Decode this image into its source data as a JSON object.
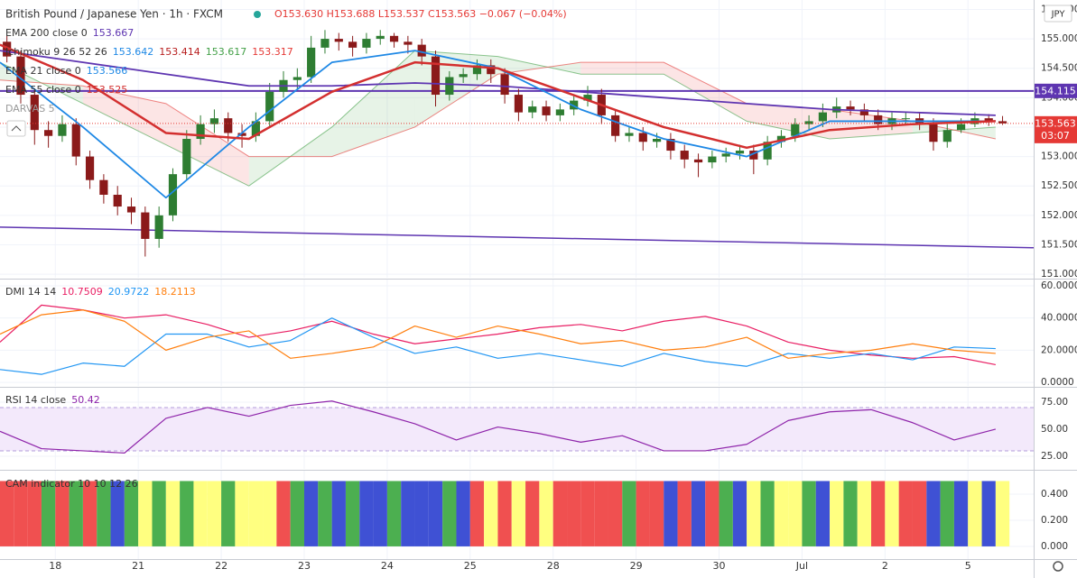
{
  "chart_data": [
    {
      "type": "candlestick",
      "title": "British Pound / Japanese Yen · 1h · FXCM",
      "quote": [
        "O153.630",
        "H153.688",
        "L153.537",
        "C153.563",
        "−0.067 (−0.04%)"
      ],
      "currency": "JPY",
      "x": [
        -14,
        -10,
        -6,
        -2,
        2,
        6,
        10,
        14,
        18,
        22,
        26,
        30,
        34,
        38,
        42,
        46,
        50,
        54,
        58,
        62,
        66,
        70,
        74,
        78,
        82,
        86,
        90,
        94,
        98,
        102,
        106,
        110,
        114,
        118,
        122,
        126,
        130,
        134,
        138,
        142,
        146,
        150,
        154,
        158,
        162,
        166,
        170,
        174,
        178,
        182,
        186,
        190,
        194,
        198,
        202,
        206,
        210,
        214,
        218,
        222,
        226,
        230,
        234,
        238,
        242,
        246,
        250,
        254,
        258,
        262,
        266,
        270,
        274
      ],
      "open": [
        154.95,
        154.7,
        154.05,
        153.45,
        153.35,
        153.55,
        153.0,
        152.6,
        152.35,
        152.15,
        152.05,
        151.6,
        152.0,
        152.7,
        153.3,
        153.55,
        153.65,
        153.4,
        153.35,
        153.6,
        154.1,
        154.3,
        154.35,
        154.85,
        155.0,
        154.95,
        154.85,
        155.0,
        155.05,
        154.95,
        154.9,
        154.7,
        154.05,
        154.35,
        154.4,
        154.55,
        154.4,
        154.05,
        153.75,
        153.85,
        153.7,
        153.8,
        153.95,
        154.05,
        153.7,
        153.35,
        153.4,
        153.25,
        153.3,
        153.1,
        152.95,
        152.9,
        153.0,
        153.05,
        153.1,
        152.95,
        153.25,
        153.35,
        153.55,
        153.6,
        153.75,
        153.85,
        153.8,
        153.7,
        153.55,
        153.65,
        153.65,
        153.55,
        153.25,
        153.45,
        153.55,
        153.65,
        153.6
      ],
      "high": [
        155.05,
        154.8,
        154.15,
        153.6,
        153.7,
        153.65,
        153.1,
        152.7,
        152.5,
        152.3,
        152.15,
        152.15,
        152.8,
        153.45,
        153.7,
        153.8,
        153.75,
        153.55,
        153.75,
        154.25,
        154.45,
        154.5,
        155.05,
        155.15,
        155.1,
        155.05,
        155.1,
        155.15,
        155.1,
        155.05,
        155.0,
        154.8,
        154.45,
        154.5,
        154.65,
        154.65,
        154.5,
        154.15,
        153.95,
        153.95,
        153.9,
        154.05,
        154.2,
        154.15,
        153.8,
        153.5,
        153.5,
        153.4,
        153.4,
        153.2,
        153.05,
        153.1,
        153.15,
        153.2,
        153.2,
        153.35,
        153.45,
        153.65,
        153.7,
        153.9,
        154.0,
        153.95,
        153.9,
        153.8,
        153.75,
        153.75,
        153.75,
        153.65,
        153.55,
        153.65,
        153.75,
        153.72,
        153.688
      ],
      "low": [
        154.6,
        153.9,
        153.2,
        153.15,
        153.25,
        152.85,
        152.45,
        152.2,
        152.0,
        151.85,
        151.3,
        151.45,
        151.9,
        152.6,
        153.2,
        153.4,
        153.25,
        153.15,
        153.25,
        153.5,
        154.0,
        154.15,
        154.25,
        154.75,
        154.8,
        154.7,
        154.75,
        154.9,
        154.85,
        154.75,
        154.55,
        153.85,
        153.95,
        154.25,
        154.3,
        154.25,
        153.9,
        153.6,
        153.65,
        153.6,
        153.6,
        153.7,
        153.85,
        153.55,
        153.25,
        153.25,
        153.1,
        153.15,
        152.95,
        152.8,
        152.65,
        152.8,
        152.9,
        152.95,
        152.7,
        152.85,
        153.15,
        153.25,
        153.45,
        153.5,
        153.65,
        153.7,
        153.6,
        153.45,
        153.45,
        153.55,
        153.45,
        153.1,
        153.15,
        153.4,
        153.5,
        153.52,
        153.537
      ],
      "close": [
        154.7,
        154.05,
        153.45,
        153.35,
        153.55,
        153.0,
        152.6,
        152.35,
        152.15,
        152.05,
        151.6,
        152.0,
        152.7,
        153.3,
        153.55,
        153.65,
        153.4,
        153.35,
        153.6,
        154.1,
        154.3,
        154.35,
        154.85,
        155.0,
        154.95,
        154.85,
        155.0,
        155.05,
        154.95,
        154.9,
        154.7,
        154.05,
        154.35,
        154.4,
        154.55,
        154.4,
        154.05,
        153.75,
        153.85,
        153.7,
        153.8,
        153.95,
        154.05,
        153.7,
        153.35,
        153.4,
        153.25,
        153.3,
        153.1,
        152.95,
        152.9,
        153.0,
        153.05,
        153.1,
        152.95,
        153.25,
        153.35,
        153.55,
        153.6,
        153.75,
        153.85,
        153.8,
        153.7,
        153.55,
        153.65,
        153.65,
        153.55,
        153.25,
        153.45,
        153.55,
        153.65,
        153.6,
        153.563
      ],
      "up_color": "#2e7d32",
      "down_color": "#8b1a1a",
      "overlays": [
        {
          "name": "EMA 200 close 0",
          "last": "153.667",
          "color": "#5e35b1",
          "x": [
            -16,
            8,
            32,
            56,
            80,
            104,
            128,
            152,
            176,
            200,
            224,
            248,
            272
          ],
          "values": [
            154.8,
            154.6,
            154.4,
            154.2,
            154.2,
            154.25,
            154.2,
            154.1,
            154.0,
            153.9,
            153.8,
            153.75,
            153.7
          ]
        },
        {
          "name": "Ichimoku 9 26 52 26",
          "last": [
            "153.642",
            "153.414",
            "153.617",
            "153.317"
          ],
          "colors": [
            "#1e88e5",
            "#b71c1c",
            "#43a047",
            "#e53935"
          ],
          "x": [
            -16,
            8,
            32,
            56,
            80,
            104,
            128,
            152,
            176,
            200,
            224,
            248,
            272
          ],
          "span_a": [
            154.6,
            153.9,
            153.2,
            152.5,
            153.5,
            154.8,
            154.7,
            154.4,
            154.4,
            153.6,
            153.3,
            153.4,
            153.5
          ],
          "span_b": [
            154.3,
            154.2,
            153.9,
            153.0,
            153.0,
            153.5,
            154.4,
            154.6,
            154.6,
            153.9,
            153.8,
            153.6,
            153.3
          ]
        },
        {
          "name": "EMA 21 close 0",
          "last": "153.566",
          "color": "#1e88e5",
          "x": [
            -16,
            8,
            32,
            56,
            80,
            104,
            128,
            152,
            176,
            200,
            224,
            248,
            272
          ],
          "values": [
            154.6,
            153.5,
            152.3,
            153.5,
            154.6,
            154.8,
            154.5,
            153.8,
            153.3,
            153.0,
            153.6,
            153.6,
            153.6
          ]
        },
        {
          "name": "EMA 55 close 0",
          "last": "153.525",
          "color": "#d32f2f",
          "x": [
            -16,
            8,
            32,
            56,
            80,
            104,
            128,
            152,
            176,
            200,
            224,
            248,
            272
          ],
          "values": [
            154.9,
            154.3,
            153.4,
            153.3,
            154.1,
            154.6,
            154.5,
            154.0,
            153.5,
            153.15,
            153.45,
            153.55,
            153.6
          ]
        }
      ],
      "darvas": "DARVAS 5",
      "hlines": [
        {
          "value": 154.115,
          "label": "154.115",
          "color": "#5e35b1"
        }
      ],
      "trendline": {
        "x": [
          -16,
          283
        ],
        "values": [
          151.8,
          151.45
        ],
        "color": "#5e35b1"
      },
      "last_price": {
        "value": 153.563,
        "label": "153.563",
        "countdown": "03:07",
        "color": "#e53935"
      },
      "xlim": [
        -16,
        283
      ],
      "xticks": [
        {
          "value": 0,
          "label": "18"
        },
        {
          "value": 24,
          "label": "21"
        },
        {
          "value": 48,
          "label": "22"
        },
        {
          "value": 72,
          "label": "23"
        },
        {
          "value": 96,
          "label": "24"
        },
        {
          "value": 120,
          "label": "25"
        },
        {
          "value": 144,
          "label": "28"
        },
        {
          "value": 168,
          "label": "29"
        },
        {
          "value": 192,
          "label": "30"
        },
        {
          "value": 216,
          "label": "Jul"
        },
        {
          "value": 240,
          "label": "2"
        },
        {
          "value": 264,
          "label": "5"
        }
      ],
      "ylim": [
        150.94,
        155.66
      ],
      "yticks": [
        {
          "value": 151,
          "label": "151.000"
        },
        {
          "value": 151.5,
          "label": "151.500"
        },
        {
          "value": 152,
          "label": "152.000"
        },
        {
          "value": 152.5,
          "label": "152.500"
        },
        {
          "value": 153,
          "label": "153.000"
        },
        {
          "value": 153.5,
          "label": "153.500"
        },
        {
          "value": 154,
          "label": "154.000"
        },
        {
          "value": 154.5,
          "label": "154.500"
        },
        {
          "value": 155,
          "label": "155.000"
        },
        {
          "value": 155.5,
          "label": "155.500"
        }
      ],
      "grid": true
    },
    {
      "type": "line",
      "title": "DMI 14 14",
      "x": [
        -16,
        -4,
        8,
        20,
        32,
        44,
        56,
        68,
        80,
        92,
        104,
        116,
        128,
        140,
        152,
        164,
        176,
        188,
        200,
        212,
        224,
        236,
        248,
        260,
        272
      ],
      "series": [
        {
          "last": "10.7509",
          "color": "#e91e63",
          "values": [
            25,
            48,
            45,
            40,
            42,
            36,
            28,
            32,
            38,
            30,
            24,
            27,
            30,
            34,
            36,
            32,
            38,
            41,
            35,
            25,
            20,
            17,
            15,
            16,
            11
          ]
        },
        {
          "last": "20.9722",
          "color": "#2196f3",
          "values": [
            8,
            5,
            12,
            10,
            30,
            30,
            22,
            26,
            40,
            28,
            18,
            22,
            15,
            18,
            14,
            10,
            18,
            13,
            10,
            18,
            15,
            18,
            14,
            22,
            21
          ]
        },
        {
          "last": "18.2113",
          "color": "#ff7f0e",
          "values": [
            30,
            42,
            45,
            38,
            20,
            28,
            32,
            15,
            18,
            22,
            35,
            28,
            35,
            30,
            24,
            26,
            20,
            22,
            28,
            15,
            18,
            20,
            24,
            20,
            18
          ]
        }
      ],
      "xlim": [
        -16,
        283
      ],
      "ylim": [
        -2.2,
        63.9
      ],
      "yticks": [
        {
          "value": 0,
          "label": "0.0000"
        },
        {
          "value": 20,
          "label": "20.0000"
        },
        {
          "value": 40,
          "label": "40.0000"
        },
        {
          "value": 60,
          "label": "60.0000"
        }
      ],
      "grid": true
    },
    {
      "type": "line",
      "title": "RSI 14 close",
      "x": [
        -16,
        -4,
        8,
        20,
        32,
        44,
        56,
        68,
        80,
        92,
        104,
        116,
        128,
        140,
        152,
        164,
        176,
        188,
        200,
        212,
        224,
        236,
        248,
        260,
        272
      ],
      "series": [
        {
          "last": "50.42",
          "color": "#8e24aa",
          "values": [
            48,
            32,
            30,
            28,
            60,
            70,
            62,
            72,
            76,
            66,
            55,
            40,
            52,
            46,
            38,
            44,
            30,
            30,
            36,
            58,
            66,
            68,
            56,
            40,
            50
          ]
        }
      ],
      "band": [
        30,
        70
      ],
      "band_color": "#f3e9fb",
      "xlim": [
        -16,
        283
      ],
      "ylim": [
        13.3,
        88.3
      ],
      "yticks": [
        {
          "value": 25,
          "label": "25.00"
        },
        {
          "value": 50,
          "label": "50.00"
        },
        {
          "value": 75,
          "label": "75.00"
        }
      ],
      "grid": true
    },
    {
      "type": "bar",
      "title": "CAM indicator 10 10 12 26",
      "x": [
        -14,
        -10,
        -6,
        -2,
        2,
        6,
        10,
        14,
        18,
        22,
        26,
        30,
        34,
        38,
        42,
        46,
        50,
        54,
        58,
        62,
        66,
        70,
        74,
        78,
        82,
        86,
        90,
        94,
        98,
        102,
        106,
        110,
        114,
        118,
        122,
        126,
        130,
        134,
        138,
        142,
        146,
        150,
        154,
        158,
        162,
        166,
        170,
        174,
        178,
        182,
        186,
        190,
        194,
        198,
        202,
        206,
        210,
        214,
        218,
        222,
        226,
        230,
        234,
        238,
        242,
        246,
        250,
        254,
        258,
        262,
        266,
        270,
        274
      ],
      "values": [
        0.5,
        0.5,
        0.5,
        0.5,
        0.5,
        0.5,
        0.5,
        0.5,
        0.5,
        0.5,
        0.5,
        0.5,
        0.5,
        0.5,
        0.5,
        0.5,
        0.5,
        0.5,
        0.5,
        0.5,
        0.5,
        0.5,
        0.5,
        0.5,
        0.5,
        0.5,
        0.5,
        0.5,
        0.5,
        0.5,
        0.5,
        0.5,
        0.5,
        0.5,
        0.5,
        0.5,
        0.5,
        0.5,
        0.5,
        0.5,
        0.5,
        0.5,
        0.5,
        0.5,
        0.5,
        0.5,
        0.5,
        0.5,
        0.5,
        0.5,
        0.5,
        0.5,
        0.5,
        0.5,
        0.5,
        0.5,
        0.5,
        0.5,
        0.5,
        0.5,
        0.5,
        0.5,
        0.5,
        0.5,
        0.5,
        0.5,
        0.5,
        0.5,
        0.5,
        0.5,
        0.5,
        0.5,
        0.5
      ],
      "colors": [
        "#f05050",
        "#f05050",
        "#f05050",
        "#4caf50",
        "#f05050",
        "#4caf50",
        "#f05050",
        "#4caf50",
        "#3f51d4",
        "#4caf50",
        "#ffff80",
        "#4caf50",
        "#ffff80",
        "#4caf50",
        "#ffff80",
        "#ffff80",
        "#4caf50",
        "#ffff80",
        "#ffff80",
        "#ffff80",
        "#f05050",
        "#4caf50",
        "#3f51d4",
        "#4caf50",
        "#3f51d4",
        "#4caf50",
        "#3f51d4",
        "#3f51d4",
        "#4caf50",
        "#3f51d4",
        "#3f51d4",
        "#3f51d4",
        "#4caf50",
        "#3f51d4",
        "#f05050",
        "#ffff80",
        "#f05050",
        "#ffff80",
        "#f05050",
        "#ffff80",
        "#f05050",
        "#f05050",
        "#f05050",
        "#f05050",
        "#f05050",
        "#4caf50",
        "#f05050",
        "#f05050",
        "#3f51d4",
        "#f05050",
        "#3f51d4",
        "#f05050",
        "#4caf50",
        "#3f51d4",
        "#ffff80",
        "#4caf50",
        "#ffff80",
        "#ffff80",
        "#4caf50",
        "#3f51d4",
        "#ffff80",
        "#4caf50",
        "#ffff80",
        "#f05050",
        "#ffff80",
        "#f05050",
        "#f05050",
        "#3f51d4",
        "#4caf50",
        "#3f51d4",
        "#ffff80",
        "#3f51d4",
        "#ffff80"
      ],
      "xlim": [
        -16,
        283
      ],
      "ylim": [
        -0.097,
        0.579
      ],
      "yticks": [
        {
          "value": 0,
          "label": "0.000"
        },
        {
          "value": 0.2,
          "label": "0.200"
        },
        {
          "value": 0.4,
          "label": "0.400"
        }
      ],
      "grid": true
    }
  ]
}
